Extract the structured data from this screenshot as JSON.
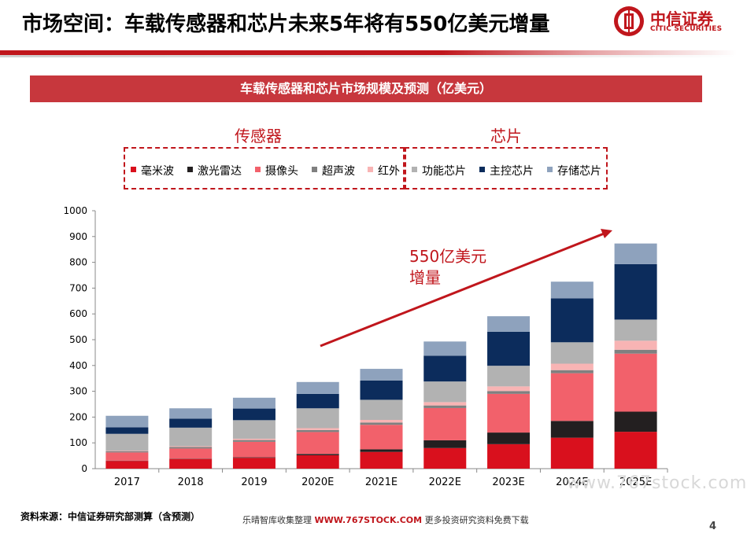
{
  "header": {
    "title": "市场空间：车载传感器和芯片未来5年将有550亿美元增量",
    "logo_name": "中信证券",
    "logo_en": "CITIC SECURITIES"
  },
  "banner": {
    "text": "车载传感器和芯片市场规模及预测（亿美元）"
  },
  "legend": {
    "sensor_group": "传感器",
    "chip_group": "芯片",
    "items": [
      {
        "label": "毫米波",
        "color": "#d9101d"
      },
      {
        "label": "激光雷达",
        "color": "#231f20"
      },
      {
        "label": "摄像头",
        "color": "#f2616b"
      },
      {
        "label": "超声波",
        "color": "#808080"
      },
      {
        "label": "红外",
        "color": "#f8b4b4"
      },
      {
        "label": "功能芯片",
        "color": "#b2b2b2"
      },
      {
        "label": "主控芯片",
        "color": "#0c2c5c"
      },
      {
        "label": "存储芯片",
        "color": "#8ea2bd"
      }
    ]
  },
  "annotation": {
    "line1": "550亿美元",
    "line2": "增量",
    "color": "#c0161c"
  },
  "chart_data": {
    "type": "bar",
    "stacked": true,
    "categories": [
      "2017",
      "2018",
      "2019",
      "2020E",
      "2021E",
      "2022E",
      "2023E",
      "2024E",
      "2025E"
    ],
    "ylim": [
      0,
      1000
    ],
    "yticks": [
      0,
      100,
      200,
      300,
      400,
      500,
      600,
      700,
      800,
      900,
      1000
    ],
    "series": [
      {
        "name": "毫米波",
        "color": "#d9101d",
        "values": [
          30,
          37,
          42,
          52,
          65,
          80,
          95,
          120,
          143
        ]
      },
      {
        "name": "激光雷达",
        "color": "#231f20",
        "values": [
          1,
          1,
          2,
          5,
          10,
          30,
          45,
          65,
          78
        ]
      },
      {
        "name": "摄像头",
        "color": "#f2616b",
        "values": [
          32,
          40,
          60,
          85,
          95,
          125,
          150,
          185,
          225
        ]
      },
      {
        "name": "超声波",
        "color": "#808080",
        "values": [
          5,
          6,
          7,
          8,
          9,
          10,
          11,
          12,
          15
        ]
      },
      {
        "name": "红外",
        "color": "#f8b4b4",
        "values": [
          2,
          3,
          5,
          7,
          10,
          13,
          18,
          25,
          35
        ]
      },
      {
        "name": "功能芯片",
        "color": "#b2b2b2",
        "values": [
          65,
          72,
          72,
          77,
          78,
          80,
          80,
          83,
          82
        ]
      },
      {
        "name": "主控芯片",
        "color": "#0c2c5c",
        "values": [
          25,
          35,
          45,
          56,
          75,
          100,
          132,
          170,
          215
        ]
      },
      {
        "name": "存储芯片",
        "color": "#8ea2bd",
        "values": [
          45,
          40,
          42,
          46,
          45,
          55,
          60,
          65,
          80
        ]
      }
    ]
  },
  "footer": {
    "source": "资料来源：中信证券研究部测算（含预测）",
    "note_prefix": "乐晴智库收集整理 ",
    "note_site": "WWW.767STOCK.COM",
    "note_suffix": " 更多投资研究资料免费下载",
    "watermark": "www.767stock.com",
    "page": "4"
  }
}
